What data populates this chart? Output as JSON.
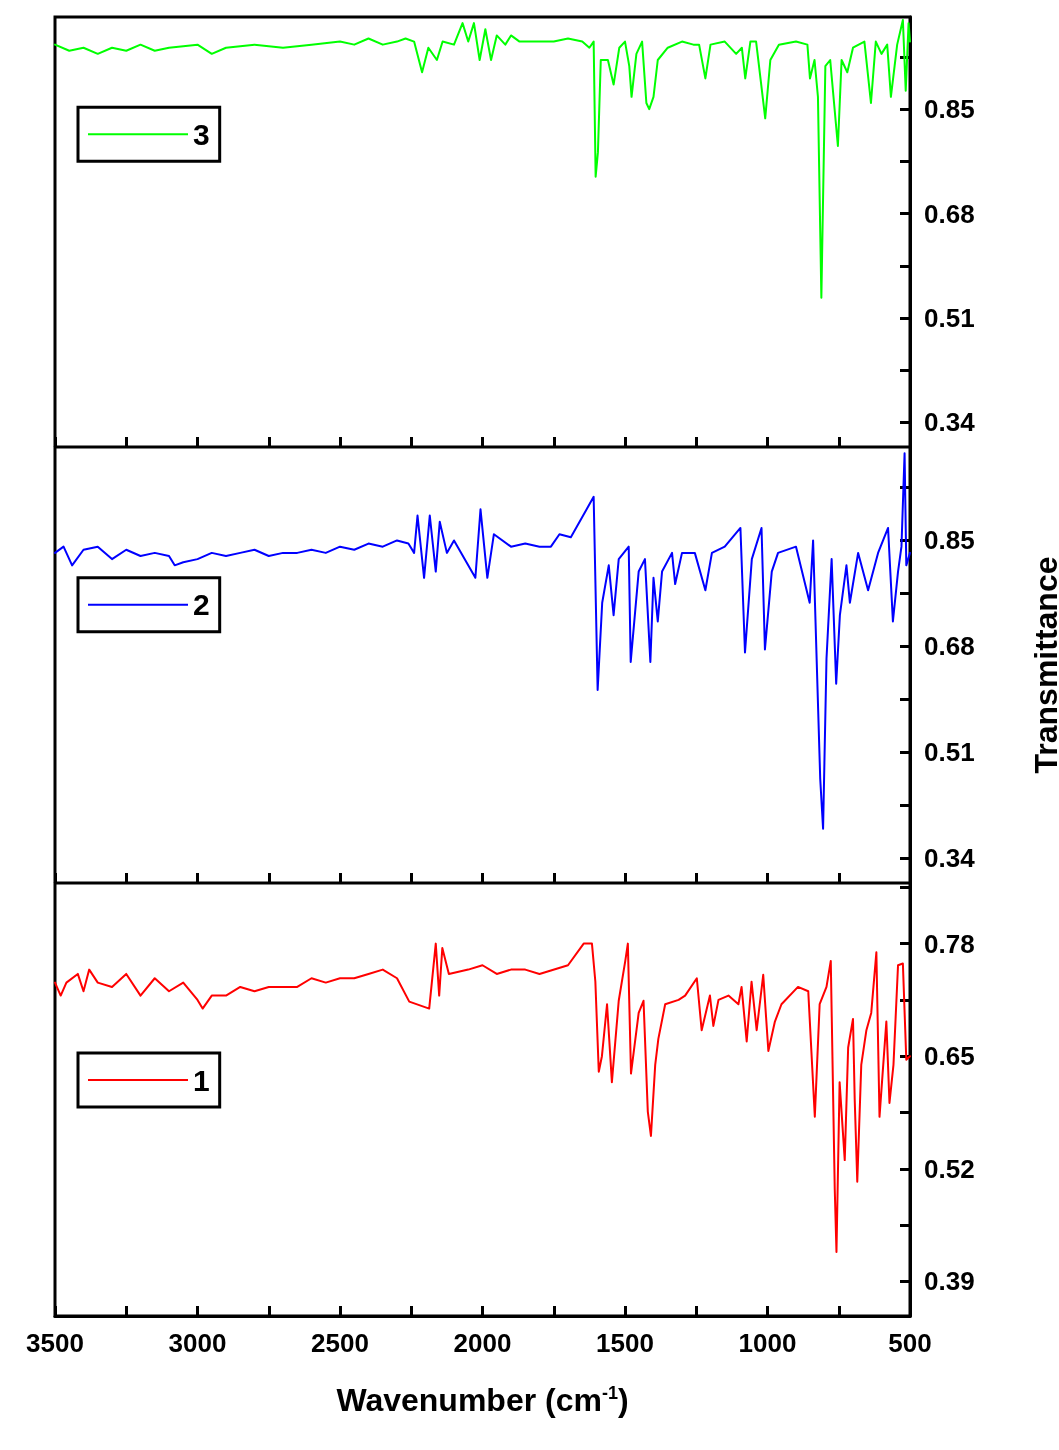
{
  "chart_data": [
    {
      "type": "line",
      "legend": "top left",
      "marker": "none",
      "line_style": "solid",
      "grid": false,
      "tick_labels": "y",
      "xlim": [
        3500,
        500
      ],
      "xticks": [
        {
          "value": 3500,
          "label": null
        },
        {
          "value": 3250,
          "label": null
        },
        {
          "value": 3000,
          "label": null
        },
        {
          "value": 2750,
          "label": null
        },
        {
          "value": 2500,
          "label": null
        },
        {
          "value": 2250,
          "label": null
        },
        {
          "value": 2000,
          "label": null
        },
        {
          "value": 1750,
          "label": null
        },
        {
          "value": 1500,
          "label": null
        },
        {
          "value": 1250,
          "label": null
        },
        {
          "value": 1000,
          "label": null
        },
        {
          "value": 750,
          "label": null
        },
        {
          "value": 500,
          "label": null
        }
      ],
      "ylim": [
        0.3,
        1.0
      ],
      "yticks": [
        0.34,
        {
          "value": 0.425,
          "label": null
        },
        0.51,
        {
          "value": 0.595,
          "label": null
        },
        0.68,
        {
          "value": 0.765,
          "label": null
        },
        0.85,
        {
          "value": 0.935,
          "label": null
        }
      ],
      "x": [
        3500,
        3450,
        3400,
        3350,
        3300,
        3250,
        3200,
        3150,
        3100,
        3000,
        2950,
        2900,
        2800,
        2700,
        2600,
        2500,
        2450,
        2400,
        2350,
        2300,
        2270,
        2240,
        2212,
        2190,
        2160,
        2140,
        2100,
        2070,
        2050,
        2030,
        2010,
        1990,
        1970,
        1950,
        1920,
        1900,
        1870,
        1800,
        1750,
        1700,
        1650,
        1625,
        1610,
        1603,
        1595,
        1585,
        1560,
        1540,
        1520,
        1500,
        1485,
        1477,
        1460,
        1440,
        1425,
        1415,
        1400,
        1385,
        1350,
        1300,
        1260,
        1240,
        1218,
        1200,
        1150,
        1110,
        1090,
        1078,
        1060,
        1040,
        1008,
        990,
        960,
        900,
        860,
        851,
        835,
        823,
        811,
        797,
        780,
        753,
        740,
        720,
        700,
        660,
        637,
        620,
        600,
        580,
        567,
        545,
        525,
        515,
        505,
        500
      ],
      "series": [
        {
          "name": "3",
          "color": "#00ff00",
          "values": [
            0.955,
            0.945,
            0.95,
            0.94,
            0.95,
            0.945,
            0.955,
            0.945,
            0.95,
            0.955,
            0.94,
            0.95,
            0.955,
            0.95,
            0.955,
            0.96,
            0.955,
            0.965,
            0.955,
            0.96,
            0.965,
            0.96,
            0.91,
            0.95,
            0.93,
            0.96,
            0.955,
            0.99,
            0.96,
            0.99,
            0.93,
            0.98,
            0.93,
            0.97,
            0.955,
            0.97,
            0.96,
            0.96,
            0.96,
            0.965,
            0.96,
            0.95,
            0.96,
            0.74,
            0.78,
            0.93,
            0.93,
            0.89,
            0.95,
            0.96,
            0.92,
            0.87,
            0.94,
            0.96,
            0.86,
            0.85,
            0.87,
            0.93,
            0.95,
            0.96,
            0.955,
            0.955,
            0.9,
            0.955,
            0.96,
            0.94,
            0.95,
            0.9,
            0.96,
            0.96,
            0.835,
            0.93,
            0.955,
            0.96,
            0.955,
            0.9,
            0.93,
            0.87,
            0.543,
            0.92,
            0.93,
            0.79,
            0.93,
            0.91,
            0.95,
            0.96,
            0.86,
            0.96,
            0.94,
            0.955,
            0.87,
            0.955,
            0.995,
            0.88,
            0.99,
            0.96
          ]
        }
      ]
    },
    {
      "type": "line",
      "legend": "left",
      "marker": "none",
      "line_style": "solid",
      "grid": false,
      "tick_labels": "y",
      "ylabel": "Transmittance",
      "xlim": [
        3500,
        500
      ],
      "xticks": [
        {
          "value": 3500,
          "label": null
        },
        {
          "value": 3250,
          "label": null
        },
        {
          "value": 3000,
          "label": null
        },
        {
          "value": 2750,
          "label": null
        },
        {
          "value": 2500,
          "label": null
        },
        {
          "value": 2250,
          "label": null
        },
        {
          "value": 2000,
          "label": null
        },
        {
          "value": 1750,
          "label": null
        },
        {
          "value": 1500,
          "label": null
        },
        {
          "value": 1250,
          "label": null
        },
        {
          "value": 1000,
          "label": null
        },
        {
          "value": 750,
          "label": null
        },
        {
          "value": 500,
          "label": null
        }
      ],
      "ylim": [
        0.3,
        1.0
      ],
      "yticks": [
        0.34,
        {
          "value": 0.425,
          "label": null
        },
        0.51,
        {
          "value": 0.595,
          "label": null
        },
        0.68,
        {
          "value": 0.765,
          "label": null
        },
        0.85,
        {
          "value": 0.935,
          "label": null
        }
      ],
      "x": [
        3500,
        3470,
        3440,
        3400,
        3350,
        3300,
        3250,
        3200,
        3150,
        3100,
        3080,
        3050,
        3000,
        2950,
        2900,
        2850,
        2800,
        2750,
        2700,
        2650,
        2600,
        2550,
        2500,
        2450,
        2400,
        2350,
        2300,
        2260,
        2240,
        2228,
        2205,
        2185,
        2164,
        2150,
        2125,
        2100,
        2025,
        2007,
        1983,
        1960,
        1900,
        1850,
        1800,
        1760,
        1730,
        1690,
        1610,
        1596,
        1580,
        1557,
        1540,
        1522,
        1487,
        1480,
        1452,
        1430,
        1411,
        1400,
        1385,
        1370,
        1335,
        1324,
        1300,
        1255,
        1218,
        1195,
        1150,
        1095,
        1079,
        1055,
        1021,
        1009,
        985,
        963,
        900,
        852,
        840,
        815,
        805,
        793,
        775,
        759,
        746,
        723,
        711,
        682,
        647,
        612,
        577,
        560,
        542,
        530,
        519,
        513,
        500
      ],
      "series": [
        {
          "name": "2",
          "color": "#0000ff",
          "values": [
            0.83,
            0.84,
            0.81,
            0.835,
            0.84,
            0.82,
            0.835,
            0.825,
            0.83,
            0.825,
            0.81,
            0.815,
            0.82,
            0.83,
            0.825,
            0.83,
            0.835,
            0.825,
            0.83,
            0.83,
            0.835,
            0.83,
            0.84,
            0.835,
            0.845,
            0.84,
            0.85,
            0.845,
            0.83,
            0.89,
            0.79,
            0.89,
            0.8,
            0.88,
            0.83,
            0.85,
            0.79,
            0.9,
            0.79,
            0.86,
            0.84,
            0.845,
            0.84,
            0.84,
            0.86,
            0.855,
            0.92,
            0.61,
            0.75,
            0.81,
            0.73,
            0.82,
            0.84,
            0.655,
            0.8,
            0.82,
            0.655,
            0.79,
            0.72,
            0.8,
            0.83,
            0.78,
            0.83,
            0.83,
            0.77,
            0.83,
            0.84,
            0.87,
            0.67,
            0.82,
            0.87,
            0.675,
            0.8,
            0.83,
            0.84,
            0.75,
            0.85,
            0.467,
            0.387,
            0.66,
            0.82,
            0.62,
            0.73,
            0.81,
            0.75,
            0.83,
            0.77,
            0.83,
            0.87,
            0.72,
            0.8,
            0.84,
            0.99,
            0.81,
            0.83
          ]
        }
      ]
    },
    {
      "type": "line",
      "legend": "left",
      "marker": "none",
      "line_style": "solid",
      "grid": false,
      "xlabel": "Wavenumber (cm$^{-1}$)",
      "xlim": [
        3500,
        500
      ],
      "xticks": [
        3500,
        {
          "value": 3250,
          "label": null
        },
        3000,
        {
          "value": 2750,
          "label": null
        },
        2500,
        {
          "value": 2250,
          "label": null
        },
        2000,
        {
          "value": 1750,
          "label": null
        },
        1500,
        {
          "value": 1250,
          "label": null
        },
        1000,
        {
          "value": 750,
          "label": null
        },
        500
      ],
      "ylim": [
        0.35,
        0.85
      ],
      "yticks": [
        0.39,
        {
          "value": 0.455,
          "label": null
        },
        0.52,
        {
          "value": 0.585,
          "label": null
        },
        0.65,
        {
          "value": 0.715,
          "label": null
        },
        0.78,
        {
          "value": 0.845,
          "label": null
        }
      ],
      "x": [
        3500,
        3480,
        3460,
        3420,
        3400,
        3380,
        3350,
        3300,
        3250,
        3200,
        3150,
        3100,
        3050,
        3000,
        2982,
        2950,
        2900,
        2850,
        2800,
        2750,
        2700,
        2650,
        2600,
        2550,
        2500,
        2450,
        2400,
        2350,
        2300,
        2257,
        2187,
        2164,
        2152,
        2141,
        2118,
        2050,
        2000,
        1950,
        1900,
        1850,
        1800,
        1700,
        1645,
        1616,
        1604,
        1592,
        1581,
        1563,
        1546,
        1522,
        1499,
        1490,
        1479,
        1452,
        1435,
        1420,
        1409,
        1394,
        1383,
        1359,
        1312,
        1289,
        1248,
        1231,
        1202,
        1190,
        1172,
        1137,
        1102,
        1091,
        1073,
        1056,
        1038,
        1015,
        997,
        974,
        951,
        893,
        857,
        834,
        817,
        793,
        778,
        764,
        758,
        747,
        729,
        717,
        700,
        694,
        685,
        671,
        653,
        636,
        618,
        607,
        583,
        572,
        558,
        542,
        525,
        513,
        500
      ],
      "series": [
        {
          "name": "1",
          "color": "#ff0000",
          "values": [
            0.735,
            0.72,
            0.735,
            0.745,
            0.725,
            0.75,
            0.735,
            0.73,
            0.745,
            0.72,
            0.74,
            0.725,
            0.735,
            0.715,
            0.705,
            0.72,
            0.72,
            0.73,
            0.725,
            0.73,
            0.73,
            0.73,
            0.74,
            0.735,
            0.74,
            0.74,
            0.745,
            0.75,
            0.74,
            0.713,
            0.705,
            0.78,
            0.72,
            0.775,
            0.745,
            0.75,
            0.755,
            0.745,
            0.75,
            0.75,
            0.745,
            0.755,
            0.78,
            0.78,
            0.736,
            0.632,
            0.65,
            0.71,
            0.62,
            0.714,
            0.76,
            0.78,
            0.63,
            0.7,
            0.714,
            0.586,
            0.558,
            0.64,
            0.67,
            0.71,
            0.715,
            0.72,
            0.74,
            0.68,
            0.72,
            0.685,
            0.715,
            0.72,
            0.71,
            0.73,
            0.667,
            0.736,
            0.68,
            0.744,
            0.656,
            0.69,
            0.71,
            0.73,
            0.725,
            0.58,
            0.71,
            0.73,
            0.76,
            0.496,
            0.424,
            0.62,
            0.53,
            0.66,
            0.693,
            0.6,
            0.505,
            0.64,
            0.68,
            0.7,
            0.77,
            0.58,
            0.69,
            0.596,
            0.64,
            0.755,
            0.757,
            0.646,
            0.65
          ]
        }
      ]
    }
  ]
}
